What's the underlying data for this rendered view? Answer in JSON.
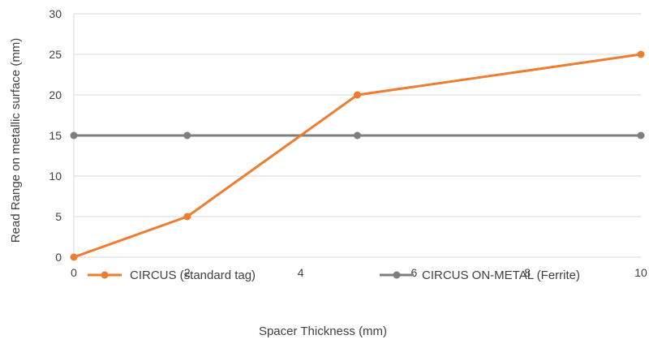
{
  "chart_data": {
    "type": "line",
    "title": "",
    "xlabel": "Spacer Thickness (mm)",
    "ylabel": "Read Range on metallic  surface (mm)",
    "xlim": [
      0,
      10
    ],
    "ylim": [
      0,
      30
    ],
    "x_ticks": [
      0,
      2,
      4,
      6,
      8,
      10
    ],
    "y_ticks": [
      0,
      5,
      10,
      15,
      20,
      25,
      30
    ],
    "grid": "horizontal",
    "legend_position": "bottom",
    "series": [
      {
        "name": "CIRCUS (standard tag)",
        "color": "#ed7d31",
        "points": [
          [
            0,
            0
          ],
          [
            2,
            5
          ],
          [
            5,
            20
          ],
          [
            10,
            25
          ]
        ]
      },
      {
        "name": "CIRCUS ON-METAL (Ferrite)",
        "color": "#7f7f7f",
        "points": [
          [
            0,
            15
          ],
          [
            2,
            15
          ],
          [
            5,
            15
          ],
          [
            10,
            15
          ]
        ]
      }
    ]
  }
}
